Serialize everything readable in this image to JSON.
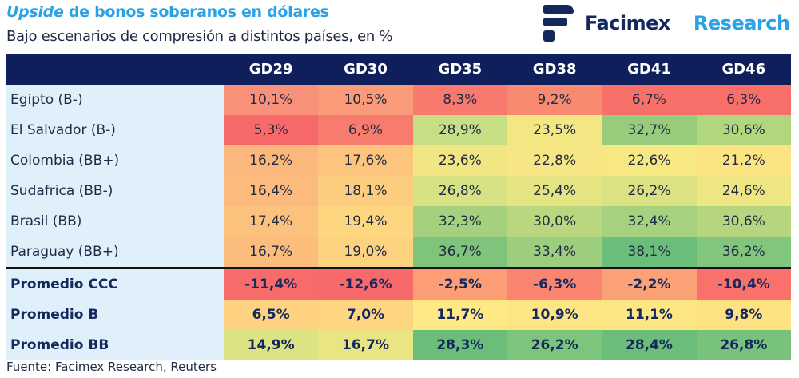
{
  "header": {
    "title_italic": "Upside",
    "title_rest": " de bonos soberanos en dólares",
    "subtitle": "Bajo escenarios de compresión a distintos países, en %"
  },
  "logo": {
    "name": "Facimex",
    "division": "Research",
    "icon": "facimex-logo-icon"
  },
  "colors": {
    "header_bg": "#0f1f5c",
    "label_bg": "#dff0fb",
    "title": "#2aa3e6"
  },
  "table": {
    "columns": [
      "GD29",
      "GD30",
      "GD35",
      "GD38",
      "GD41",
      "GD46"
    ],
    "rows": [
      {
        "label": "Egipto (B-)",
        "values": [
          "10,1%",
          "10,5%",
          "8,3%",
          "9,2%",
          "6,7%",
          "6,3%"
        ],
        "colors": [
          "#f9917a",
          "#f99a78",
          "#f87a6e",
          "#f98a72",
          "#f8706a",
          "#f86e68"
        ]
      },
      {
        "label": "El Salvador (B-)",
        "values": [
          "5,3%",
          "6,9%",
          "28,9%",
          "23,5%",
          "32,7%",
          "30,6%"
        ],
        "colors": [
          "#f8696b",
          "#f87c6e",
          "#c6df84",
          "#f3e784",
          "#98cc7c",
          "#b2d67e"
        ]
      },
      {
        "label": "Colombia (BB+)",
        "values": [
          "16,2%",
          "17,6%",
          "23,6%",
          "22,8%",
          "22,6%",
          "21,2%"
        ],
        "colors": [
          "#fcb87c",
          "#fdc47e",
          "#f2e584",
          "#f6e784",
          "#f8e884",
          "#fde483"
        ]
      },
      {
        "label": "Sudafrica (BB-)",
        "values": [
          "16,4%",
          "18,1%",
          "26,8%",
          "25,4%",
          "26,2%",
          "24,6%"
        ],
        "colors": [
          "#fcbb7c",
          "#fdcd7f",
          "#d6e283",
          "#e5e483",
          "#dce283",
          "#eee683"
        ]
      },
      {
        "label": "Brasil (BB)",
        "values": [
          "17,4%",
          "19,4%",
          "32,3%",
          "30,0%",
          "32,4%",
          "30,6%"
        ],
        "colors": [
          "#fcc17d",
          "#fed680",
          "#a5d17e",
          "#b8d77f",
          "#a6d17e",
          "#b5d67f"
        ]
      },
      {
        "label": "Paraguay (BB+)",
        "values": [
          "16,7%",
          "19,0%",
          "36,7%",
          "33,4%",
          "38,1%",
          "36,2%"
        ],
        "colors": [
          "#fcbd7c",
          "#fed380",
          "#7fc47b",
          "#9dce7d",
          "#6bbe7a",
          "#82c57c"
        ]
      }
    ],
    "averages": [
      {
        "label": "Promedio CCC",
        "values": [
          "-11,4%",
          "-12,6%",
          "-2,5%",
          "-6,3%",
          "-2,2%",
          "-10,4%"
        ],
        "colors": [
          "#f86b6b",
          "#f8696b",
          "#fb9d75",
          "#f98570",
          "#fba176",
          "#f8716b"
        ]
      },
      {
        "label": "Promedio B",
        "values": [
          "6,5%",
          "7,0%",
          "11,7%",
          "10,9%",
          "11,1%",
          "9,8%"
        ],
        "colors": [
          "#fed280",
          "#fed580",
          "#ffe984",
          "#fee583",
          "#fee683",
          "#fee282"
        ]
      },
      {
        "label": "Promedio BB",
        "values": [
          "14,9%",
          "16,7%",
          "28,3%",
          "26,2%",
          "28,4%",
          "26,8%"
        ],
        "colors": [
          "#dbe383",
          "#e9e583",
          "#6bbe7a",
          "#7dc47c",
          "#6abe7a",
          "#79c27b"
        ]
      }
    ]
  },
  "source": "Fuente: Facimex Research, Reuters"
}
